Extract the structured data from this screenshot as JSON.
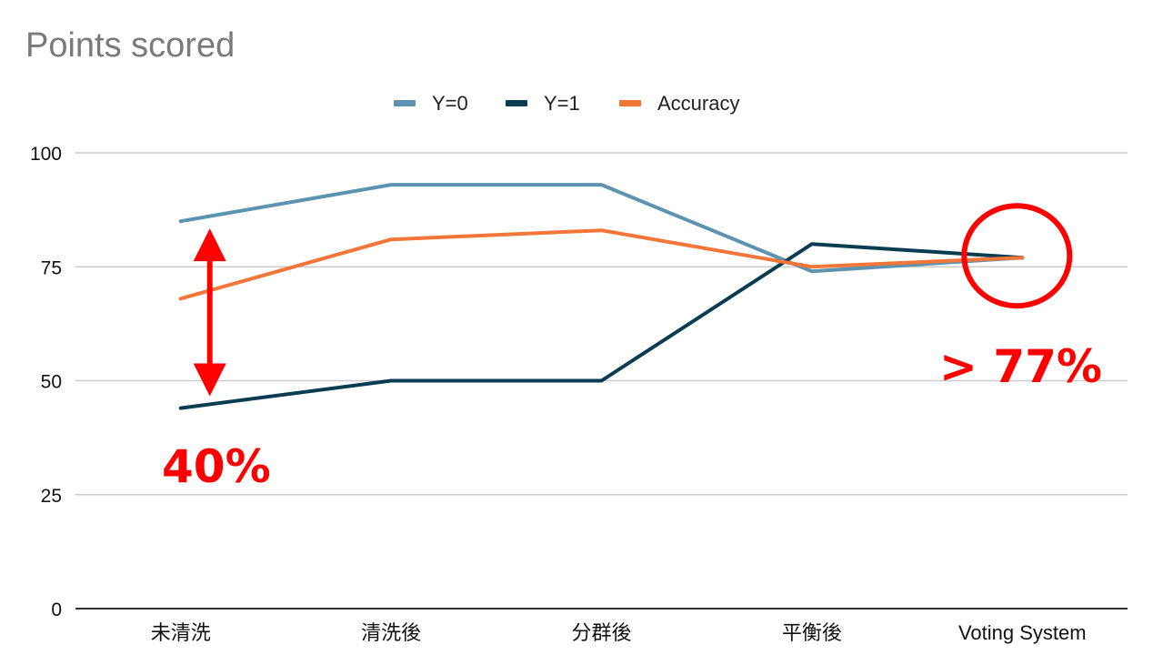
{
  "chart_data": {
    "type": "line",
    "title": "Points scored",
    "categories": [
      "未清洗",
      "清洗後",
      "分群後",
      "平衡後",
      "Voting System"
    ],
    "series": [
      {
        "name": "Y=0",
        "color": "#5b93b0",
        "values": [
          85,
          93,
          93,
          74,
          77
        ]
      },
      {
        "name": "Y=1",
        "color": "#0b3d52",
        "values": [
          44,
          50,
          50,
          80,
          77
        ]
      },
      {
        "name": "Accuracy",
        "color": "#f2763a",
        "values": [
          68,
          81,
          83,
          75,
          77
        ]
      }
    ],
    "ylim": [
      0,
      100
    ],
    "yticks": [
      0,
      25,
      50,
      75,
      100
    ],
    "grid": true,
    "legend_position": "top-center",
    "annotations": {
      "gap_label": "40%",
      "gap_arrow": {
        "category": "未清洗",
        "from": 47,
        "to": 83
      },
      "result_label": "> 77%",
      "highlight_circle": {
        "category": "Voting System",
        "value": 77
      },
      "color": "#ff0000"
    }
  }
}
